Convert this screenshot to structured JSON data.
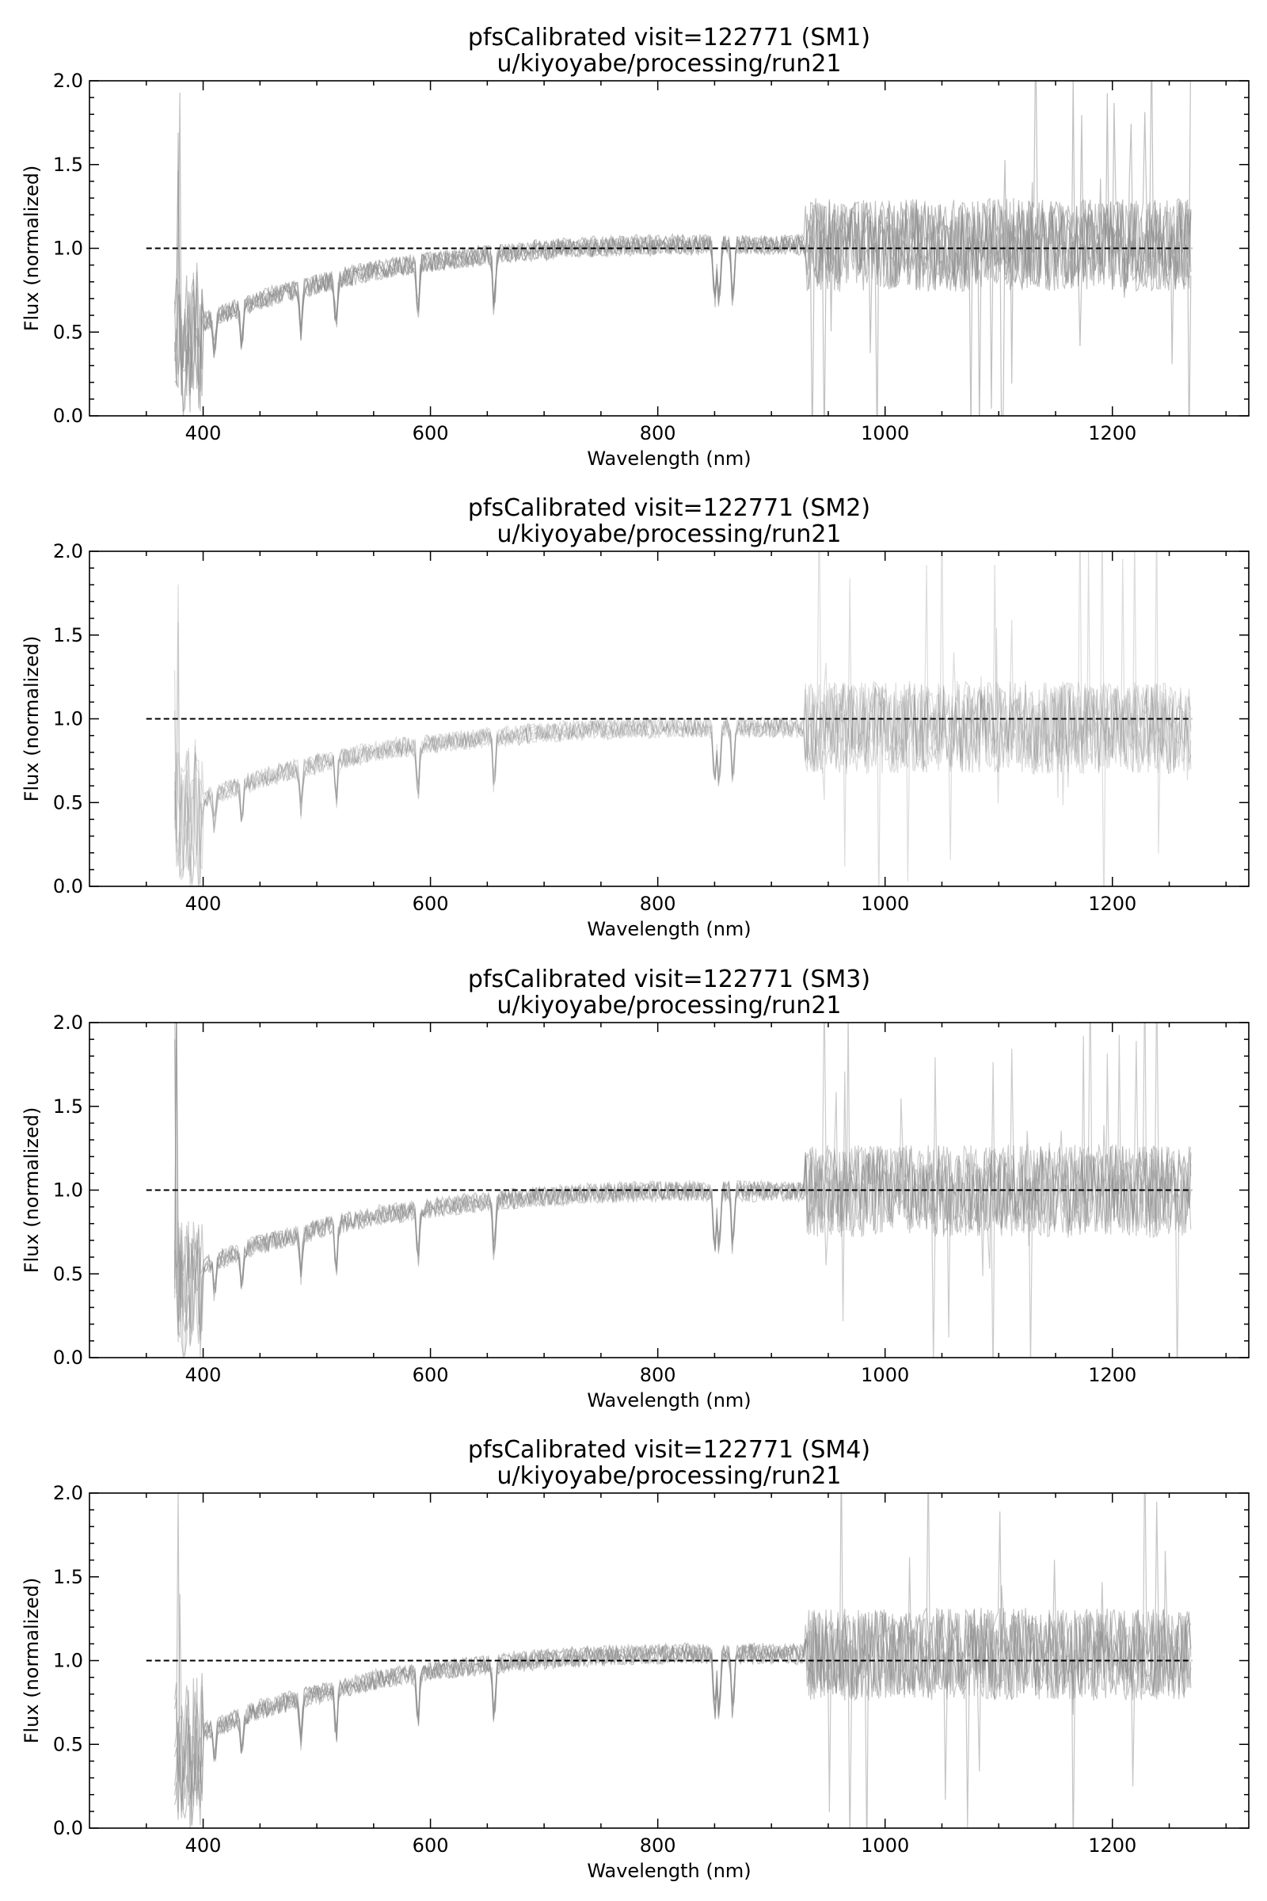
{
  "figure": {
    "background": "#ffffff",
    "spectrum_color": "#8c8c8c",
    "reference_line_color": "#000000"
  },
  "chart_data": [
    {
      "type": "line",
      "title": "pfsCalibrated visit=122771 (SM1)",
      "subtitle": "u/kiyoyabe/processing/run21",
      "xlabel": "Wavelength (nm)",
      "ylabel": "Flux (normalized)",
      "xlim": [
        300,
        1320
      ],
      "ylim": [
        0.0,
        2.0
      ],
      "xticks": [
        400,
        600,
        800,
        1000,
        1200
      ],
      "xtick_labels": [
        "400",
        "600",
        "800",
        "1000",
        "1200"
      ],
      "yticks": [
        0.0,
        0.5,
        1.0,
        1.5,
        2.0
      ],
      "ytick_labels": [
        "0.0",
        "0.5",
        "1.0",
        "1.5",
        "2.0"
      ],
      "reference_line": {
        "y": 1.0,
        "x_range": [
          350,
          1270
        ],
        "style": "dashed"
      },
      "spectra_opacity": 0.55,
      "spectrum_range": [
        375,
        1270
      ],
      "typical_shape": {
        "x": [
          375,
          400,
          450,
          500,
          550,
          600,
          650,
          700,
          750,
          800,
          850,
          900,
          950,
          1000,
          1050,
          1100,
          1150,
          1200,
          1270
        ],
        "y": [
          0.45,
          0.55,
          0.68,
          0.77,
          0.85,
          0.9,
          0.94,
          0.97,
          0.99,
          1.0,
          1.0,
          1.0,
          1.0,
          1.0,
          1.0,
          1.0,
          1.0,
          1.0,
          1.0
        ]
      },
      "grid": false
    },
    {
      "type": "line",
      "title": "pfsCalibrated visit=122771 (SM2)",
      "subtitle": "u/kiyoyabe/processing/run21",
      "xlabel": "Wavelength (nm)",
      "ylabel": "Flux (normalized)",
      "xlim": [
        300,
        1320
      ],
      "ylim": [
        0.0,
        2.0
      ],
      "xticks": [
        400,
        600,
        800,
        1000,
        1200
      ],
      "xtick_labels": [
        "400",
        "600",
        "800",
        "1000",
        "1200"
      ],
      "yticks": [
        0.0,
        0.5,
        1.0,
        1.5,
        2.0
      ],
      "ytick_labels": [
        "0.0",
        "0.5",
        "1.0",
        "1.5",
        "2.0"
      ],
      "reference_line": {
        "y": 1.0,
        "x_range": [
          350,
          1270
        ],
        "style": "dashed"
      },
      "spectra_opacity": 0.3,
      "spectrum_range": [
        375,
        1270
      ],
      "typical_shape": {
        "x": [
          375,
          400,
          450,
          500,
          550,
          600,
          650,
          700,
          750,
          800,
          850,
          900,
          950,
          1000,
          1050,
          1100,
          1150,
          1200,
          1270
        ],
        "y": [
          0.45,
          0.55,
          0.68,
          0.77,
          0.85,
          0.9,
          0.94,
          0.97,
          0.99,
          1.0,
          1.0,
          1.0,
          1.0,
          1.0,
          1.0,
          1.0,
          1.0,
          1.0,
          1.0
        ]
      },
      "grid": false
    },
    {
      "type": "line",
      "title": "pfsCalibrated visit=122771 (SM3)",
      "subtitle": "u/kiyoyabe/processing/run21",
      "xlabel": "Wavelength (nm)",
      "ylabel": "Flux (normalized)",
      "xlim": [
        300,
        1320
      ],
      "ylim": [
        0.0,
        2.0
      ],
      "xticks": [
        400,
        600,
        800,
        1000,
        1200
      ],
      "xtick_labels": [
        "400",
        "600",
        "800",
        "1000",
        "1200"
      ],
      "yticks": [
        0.0,
        0.5,
        1.0,
        1.5,
        2.0
      ],
      "ytick_labels": [
        "0.0",
        "0.5",
        "1.0",
        "1.5",
        "2.0"
      ],
      "reference_line": {
        "y": 1.0,
        "x_range": [
          350,
          1270
        ],
        "style": "dashed"
      },
      "spectra_opacity": 0.45,
      "spectrum_range": [
        375,
        1270
      ],
      "typical_shape": {
        "x": [
          375,
          400,
          450,
          500,
          550,
          600,
          650,
          700,
          750,
          800,
          850,
          900,
          950,
          1000,
          1050,
          1100,
          1150,
          1200,
          1270
        ],
        "y": [
          0.45,
          0.55,
          0.68,
          0.77,
          0.85,
          0.9,
          0.94,
          0.97,
          0.99,
          1.0,
          1.0,
          1.0,
          1.0,
          1.0,
          1.0,
          1.0,
          1.0,
          1.0,
          1.0
        ]
      },
      "grid": false
    },
    {
      "type": "line",
      "title": "pfsCalibrated visit=122771 (SM4)",
      "subtitle": "u/kiyoyabe/processing/run21",
      "xlabel": "Wavelength (nm)",
      "ylabel": "Flux (normalized)",
      "xlim": [
        300,
        1320
      ],
      "ylim": [
        0.0,
        2.0
      ],
      "xticks": [
        400,
        600,
        800,
        1000,
        1200
      ],
      "xtick_labels": [
        "400",
        "600",
        "800",
        "1000",
        "1200"
      ],
      "yticks": [
        0.0,
        0.5,
        1.0,
        1.5,
        2.0
      ],
      "ytick_labels": [
        "0.0",
        "0.5",
        "1.0",
        "1.5",
        "2.0"
      ],
      "reference_line": {
        "y": 1.0,
        "x_range": [
          350,
          1270
        ],
        "style": "dashed"
      },
      "spectra_opacity": 0.5,
      "spectrum_range": [
        375,
        1270
      ],
      "typical_shape": {
        "x": [
          375,
          400,
          450,
          500,
          550,
          600,
          650,
          700,
          750,
          800,
          850,
          900,
          950,
          1000,
          1050,
          1100,
          1150,
          1200,
          1270
        ],
        "y": [
          0.45,
          0.55,
          0.68,
          0.77,
          0.85,
          0.9,
          0.94,
          0.97,
          0.99,
          1.0,
          1.0,
          1.0,
          1.0,
          1.0,
          1.0,
          1.0,
          1.0,
          1.0,
          1.0
        ]
      },
      "grid": false
    }
  ]
}
